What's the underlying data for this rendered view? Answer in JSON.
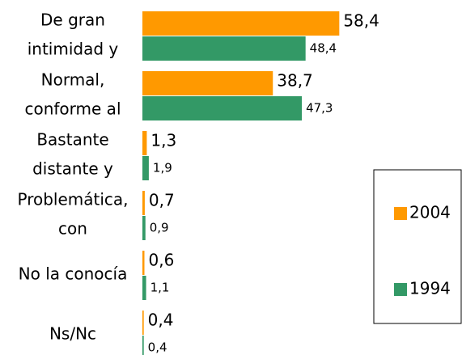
{
  "chart_data": {
    "type": "bar",
    "orientation": "horizontal",
    "categories": [
      [
        "De gran",
        "intimidad y"
      ],
      [
        "Normal,",
        "conforme al"
      ],
      [
        "Bastante",
        "distante y"
      ],
      [
        "Problemática,",
        "con"
      ],
      [
        "No la conocía"
      ],
      [
        "Ns/Nc"
      ]
    ],
    "series": [
      {
        "name": "2004",
        "color": "#ff9900",
        "values": [
          58.4,
          38.7,
          1.3,
          0.7,
          0.6,
          0.4
        ],
        "value_labels": [
          "58,4",
          "38,7",
          "1,3",
          "0,7",
          "0,6",
          "0,4"
        ]
      },
      {
        "name": "1994",
        "color": "#339966",
        "values": [
          48.4,
          47.3,
          1.9,
          0.9,
          1.1,
          0.4
        ],
        "value_labels": [
          "48,4",
          "47,3",
          "1,9",
          "0,9",
          "1,1",
          "0,4"
        ]
      }
    ],
    "xlim": [
      0,
      60
    ],
    "legend": "right"
  }
}
